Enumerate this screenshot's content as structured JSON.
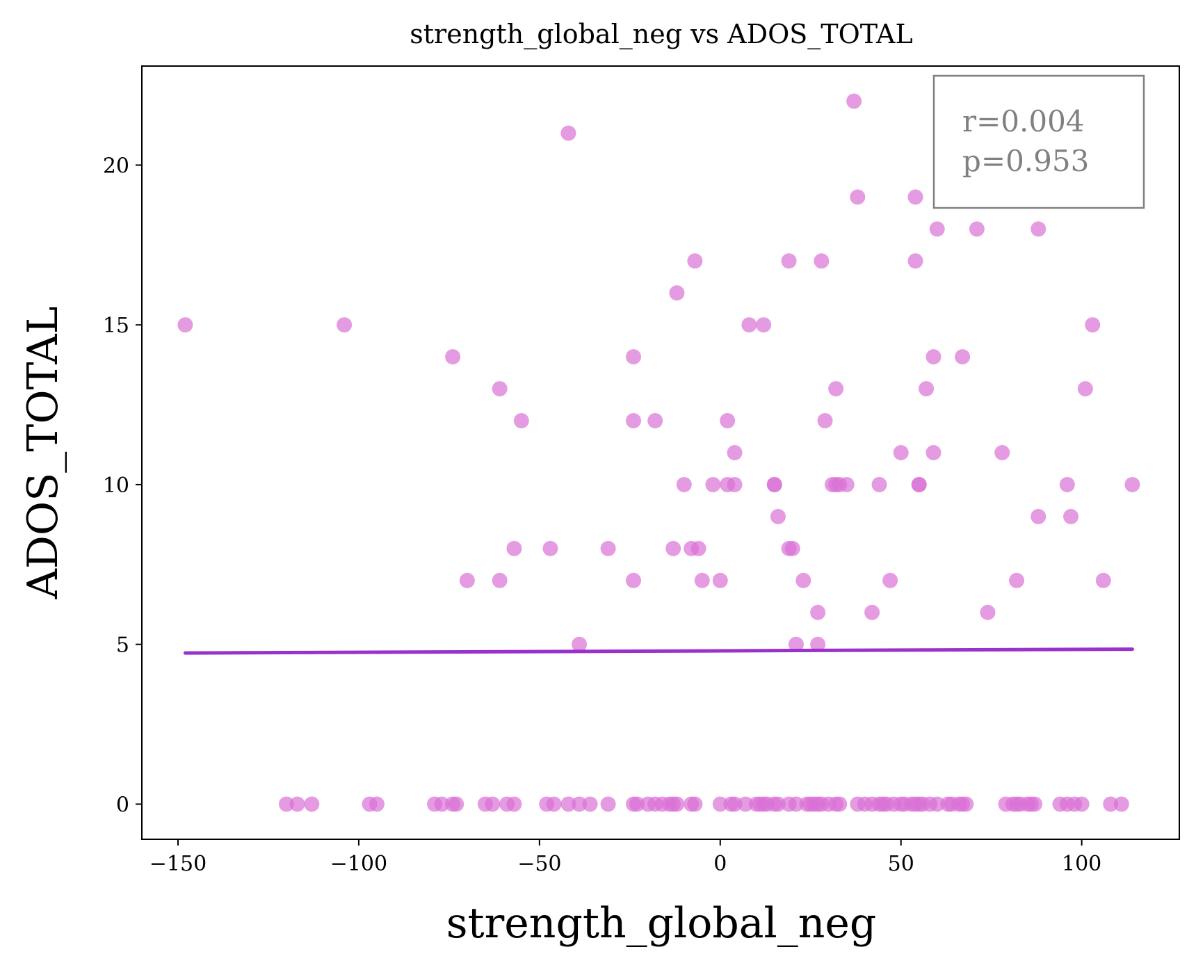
{
  "chart_data": {
    "type": "scatter",
    "title": "strength_global_neg vs ADOS_TOTAL",
    "xlabel": "strength_global_neg",
    "ylabel": "ADOS_TOTAL",
    "xlim": [
      -160,
      127
    ],
    "ylim": [
      -1.1,
      23.1
    ],
    "xticks": [
      -150,
      -100,
      -50,
      0,
      50,
      100
    ],
    "yticks": [
      0,
      5,
      10,
      15,
      20
    ],
    "xtick_labels": [
      "−150",
      "−100",
      "−50",
      "0",
      "50",
      "100"
    ],
    "ytick_labels": [
      "0",
      "5",
      "10",
      "15",
      "20"
    ],
    "grid": false,
    "point_color": "#DA70D6",
    "line_color": "#9932CC",
    "fit_line": {
      "x": [
        -148,
        114
      ],
      "y": [
        4.73,
        4.85
      ]
    },
    "annotation": {
      "lines": [
        "r=0.004",
        "p=0.953"
      ],
      "position": "top-right"
    },
    "points": {
      "x": [
        -148,
        -104,
        -74,
        -70,
        -61,
        -61,
        -55,
        -57,
        -47,
        -42,
        -39,
        -31,
        -24,
        -24,
        -24,
        -18,
        -13,
        -12,
        -10,
        -8,
        -7,
        -6,
        -5,
        -2,
        0,
        2,
        2,
        4,
        4,
        8,
        12,
        15,
        15,
        16,
        19,
        20,
        19,
        21,
        23,
        27,
        27,
        28,
        29,
        31,
        32,
        32,
        33,
        35,
        37,
        38,
        42,
        44,
        47,
        50,
        54,
        54,
        55,
        55,
        57,
        59,
        59,
        60,
        67,
        71,
        74,
        78,
        82,
        88,
        88,
        96,
        97,
        101,
        103,
        106,
        114,
        -120,
        -117,
        -113,
        -97,
        -95,
        -79,
        -77,
        -74,
        -73,
        -65,
        -63,
        -59,
        -57,
        -48,
        -46,
        -42,
        -39,
        -36,
        -31,
        -24,
        -23,
        -20,
        -18,
        -16,
        -14,
        -13,
        -12,
        -8,
        -7,
        0,
        3,
        4,
        7,
        10,
        11,
        12,
        13,
        15,
        16,
        19,
        21,
        24,
        25,
        26,
        27,
        28,
        30,
        32,
        33,
        38,
        40,
        42,
        44,
        45,
        46,
        48,
        50,
        51,
        53,
        54,
        55,
        56,
        58,
        60,
        63,
        64,
        66,
        67,
        68,
        79,
        81,
        82,
        83,
        85,
        86,
        87,
        94,
        96,
        98,
        100,
        108,
        111
      ],
      "y": [
        15,
        15,
        14,
        7,
        13,
        7,
        12,
        8,
        8,
        21,
        5,
        8,
        14,
        12,
        7,
        12,
        8,
        16,
        10,
        8,
        17,
        8,
        7,
        10,
        7,
        12,
        10,
        10,
        11,
        15,
        15,
        10,
        10,
        9,
        17,
        8,
        8,
        5,
        7,
        5,
        6,
        17,
        12,
        10,
        10,
        13,
        10,
        10,
        22,
        19,
        6,
        10,
        7,
        11,
        19,
        17,
        10,
        10,
        13,
        14,
        11,
        18,
        14,
        18,
        6,
        11,
        7,
        9,
        18,
        10,
        9,
        13,
        15,
        7,
        10,
        0,
        0,
        0,
        0,
        0,
        0,
        0,
        0,
        0,
        0,
        0,
        0,
        0,
        0,
        0,
        0,
        0,
        0,
        0,
        0,
        0,
        0,
        0,
        0,
        0,
        0,
        0,
        0,
        0,
        0,
        0,
        0,
        0,
        0,
        0,
        0,
        0,
        0,
        0,
        0,
        0,
        0,
        0,
        0,
        0,
        0,
        0,
        0,
        0,
        0,
        0,
        0,
        0,
        0,
        0,
        0,
        0,
        0,
        0,
        0,
        0,
        0,
        0,
        0,
        0,
        0,
        0,
        0,
        0,
        0,
        0,
        0,
        0,
        0,
        0,
        0,
        0,
        0,
        0,
        0,
        0,
        0
      ]
    }
  }
}
